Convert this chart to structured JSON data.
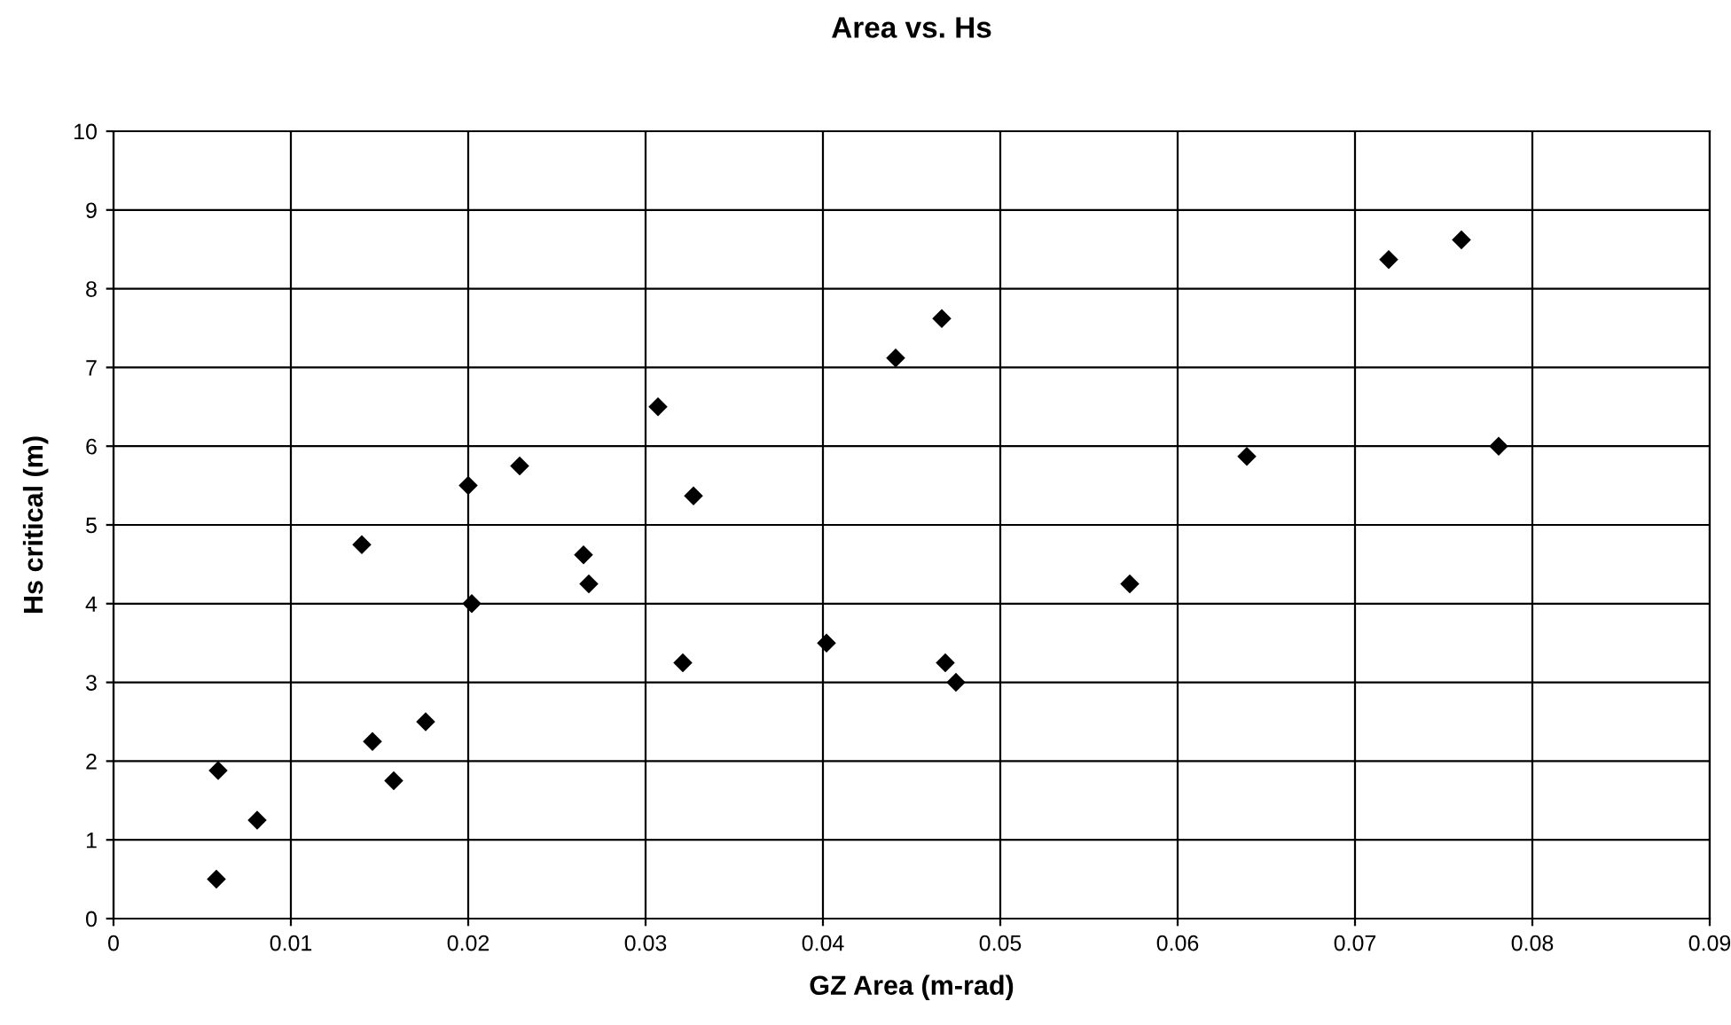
{
  "chart_data": {
    "type": "scatter",
    "title": "Area vs. Hs",
    "xlabel": "GZ Area (m-rad)",
    "ylabel": "Hs critical (m)",
    "x": [
      0.0059,
      0.0058,
      0.0081,
      0.014,
      0.0146,
      0.0158,
      0.0176,
      0.0202,
      0.0265,
      0.0268,
      0.02,
      0.0229,
      0.0307,
      0.0327,
      0.0321,
      0.0402,
      0.0441,
      0.0467,
      0.0469,
      0.0475,
      0.0719,
      0.076,
      0.0781,
      0.0639,
      0.0573
    ],
    "series": [
      {
        "color": "#000000",
        "values": [
          1.88,
          0.5,
          1.25,
          4.75,
          2.25,
          1.75,
          2.5,
          4.0,
          4.62,
          4.25,
          5.5,
          5.75,
          6.5,
          5.37,
          3.25,
          3.5,
          7.12,
          7.62,
          3.25,
          3.0,
          8.37,
          8.62,
          6.0,
          5.87,
          4.25
        ]
      }
    ],
    "xlim": [
      0,
      0.09
    ],
    "xticks": [
      {
        "value": 0,
        "label": "0"
      },
      0.01,
      0.02,
      0.03,
      0.04,
      0.05,
      0.06,
      0.07,
      0.08,
      0.09
    ],
    "ylim": [
      0,
      10
    ],
    "yticks": [
      0,
      1,
      2,
      3,
      4,
      5,
      6,
      7,
      8,
      9,
      10
    ],
    "grid": true,
    "marker": "diamond"
  }
}
